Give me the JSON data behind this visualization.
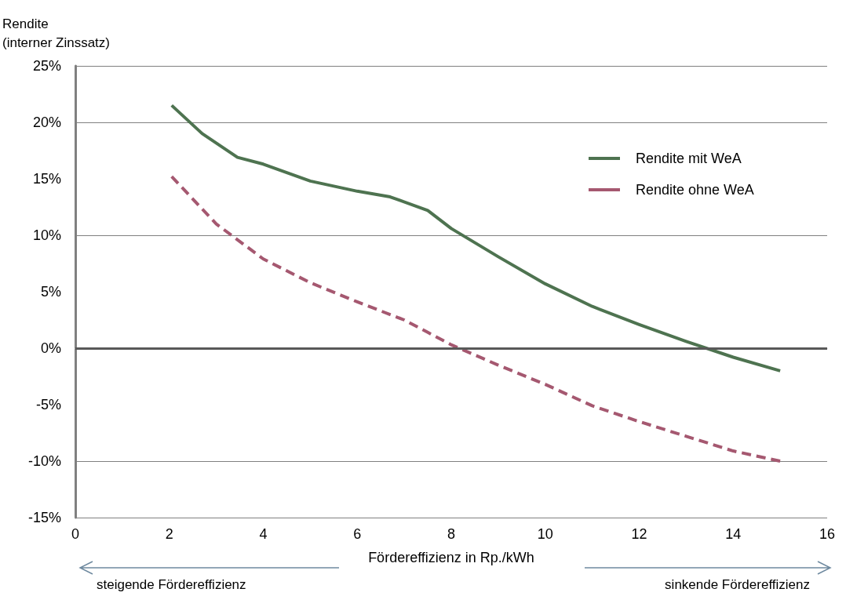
{
  "chart_data": {
    "type": "line",
    "ylabel": "Rendite\n(interner Zinssatz)",
    "xlabel": "Fördereffizienz in Rp./kWh",
    "annotations": [
      "steigende Fördereffizienz",
      "sinkende Fördereffizienz"
    ],
    "xlim": [
      0,
      16
    ],
    "xticks": [
      0,
      2,
      4,
      6,
      8,
      10,
      12,
      14,
      16
    ],
    "ylim": [
      -15,
      25
    ],
    "yticks": [
      {
        "value": -15,
        "label": "-15%"
      },
      {
        "value": -10,
        "label": "-10%"
      },
      {
        "value": -5,
        "label": "-5%"
      },
      {
        "value": 0,
        "label": "0%"
      },
      {
        "value": 5,
        "label": "5%"
      },
      {
        "value": 10,
        "label": "10%"
      },
      {
        "value": 15,
        "label": "15%"
      },
      {
        "value": 20,
        "label": "20%"
      },
      {
        "value": 25,
        "label": "25%"
      }
    ],
    "grid": "y",
    "legend": "top right",
    "marker": "none",
    "ref_lines": [
      {
        "axis": "y",
        "value": 0,
        "color": "#595959"
      }
    ],
    "series": [
      {
        "name": "Rendite mit WeA",
        "color": "#4e7350",
        "line_style": "solid",
        "x": [
          2.05,
          2.7,
          3.45,
          4,
          5,
          6,
          6.7,
          7.5,
          8,
          9,
          10,
          11,
          12,
          13,
          14,
          15
        ],
        "values": [
          21.5,
          19.0,
          16.9,
          16.3,
          14.8,
          13.9,
          13.4,
          12.2,
          10.6,
          8.1,
          5.7,
          3.7,
          2.1,
          0.6,
          -0.8,
          -2.0
        ]
      },
      {
        "name": "Rendite ohne WeA",
        "color": "#a55870",
        "line_style": "dashed",
        "x": [
          2.05,
          3,
          4,
          5,
          6,
          7,
          7.5,
          8,
          9,
          10,
          11,
          12,
          13,
          14,
          15
        ],
        "values": [
          15.2,
          11.0,
          7.9,
          5.8,
          4.1,
          2.5,
          1.4,
          0.3,
          -1.5,
          -3.2,
          -5.1,
          -6.5,
          -7.8,
          -9.1,
          -10.0
        ]
      }
    ]
  }
}
